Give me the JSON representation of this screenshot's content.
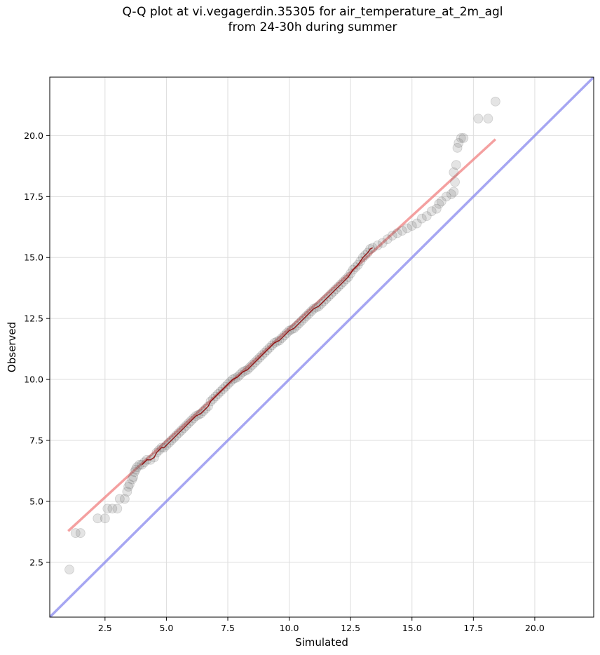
{
  "chart_data": {
    "type": "scatter",
    "title_line1": "Q-Q plot at vi.vegagerdin.35305 for air_temperature_at_2m_agl",
    "title_line2": "from 24-30h during summer",
    "xlabel": "Simulated",
    "ylabel": "Observed",
    "xlim": [
      0.25,
      22.4
    ],
    "ylim": [
      0.25,
      22.4
    ],
    "xticks": [
      2.5,
      5.0,
      7.5,
      10.0,
      12.5,
      15.0,
      17.5,
      20.0
    ],
    "yticks": [
      2.5,
      5.0,
      7.5,
      10.0,
      12.5,
      15.0,
      17.5,
      20.0
    ],
    "xtick_labels": [
      "2.5",
      "5.0",
      "7.5",
      "10.0",
      "12.5",
      "15.0",
      "17.5",
      "20.0"
    ],
    "ytick_labels": [
      "2.5",
      "5.0",
      "7.5",
      "10.0",
      "12.5",
      "15.0",
      "17.5",
      "20.0"
    ],
    "grid": true,
    "colors": {
      "points": "#555555",
      "fit_line": "#f08080",
      "identity_line": "#8888ee",
      "dense_trace": "#8b0000"
    },
    "identity_line": {
      "x": [
        0.25,
        22.4
      ],
      "y": [
        0.25,
        22.4
      ]
    },
    "fit_line": {
      "x": [
        1.0,
        18.4
      ],
      "y": [
        3.78,
        19.85
      ]
    },
    "points": [
      [
        1.05,
        2.2
      ],
      [
        1.3,
        3.7
      ],
      [
        1.5,
        3.7
      ],
      [
        2.2,
        4.3
      ],
      [
        2.5,
        4.3
      ],
      [
        2.6,
        4.7
      ],
      [
        2.8,
        4.7
      ],
      [
        3.0,
        4.7
      ],
      [
        3.1,
        5.1
      ],
      [
        3.3,
        5.1
      ],
      [
        3.4,
        5.4
      ],
      [
        3.45,
        5.6
      ],
      [
        3.5,
        5.7
      ],
      [
        3.6,
        5.9
      ],
      [
        3.65,
        6.0
      ],
      [
        3.7,
        6.2
      ],
      [
        3.75,
        6.3
      ],
      [
        3.8,
        6.4
      ],
      [
        3.9,
        6.5
      ],
      [
        4.0,
        6.5
      ],
      [
        4.1,
        6.6
      ],
      [
        4.2,
        6.7
      ],
      [
        4.35,
        6.7
      ],
      [
        4.5,
        6.8
      ],
      [
        4.6,
        7.0
      ],
      [
        4.7,
        7.1
      ],
      [
        4.8,
        7.2
      ],
      [
        4.9,
        7.2
      ],
      [
        5.0,
        7.3
      ],
      [
        5.1,
        7.4
      ],
      [
        5.2,
        7.5
      ],
      [
        5.3,
        7.6
      ],
      [
        5.4,
        7.7
      ],
      [
        5.5,
        7.8
      ],
      [
        5.6,
        7.9
      ],
      [
        5.7,
        8.0
      ],
      [
        5.8,
        8.1
      ],
      [
        5.9,
        8.2
      ],
      [
        6.0,
        8.3
      ],
      [
        6.1,
        8.4
      ],
      [
        6.2,
        8.5
      ],
      [
        6.3,
        8.55
      ],
      [
        6.4,
        8.6
      ],
      [
        6.5,
        8.7
      ],
      [
        6.6,
        8.8
      ],
      [
        6.7,
        8.9
      ],
      [
        6.8,
        9.1
      ],
      [
        6.9,
        9.2
      ],
      [
        7.0,
        9.3
      ],
      [
        7.1,
        9.4
      ],
      [
        7.2,
        9.5
      ],
      [
        7.3,
        9.6
      ],
      [
        7.4,
        9.7
      ],
      [
        7.5,
        9.8
      ],
      [
        7.6,
        9.9
      ],
      [
        7.7,
        10.0
      ],
      [
        7.8,
        10.05
      ],
      [
        7.9,
        10.1
      ],
      [
        8.0,
        10.2
      ],
      [
        8.1,
        10.3
      ],
      [
        8.2,
        10.35
      ],
      [
        8.3,
        10.4
      ],
      [
        8.4,
        10.5
      ],
      [
        8.5,
        10.6
      ],
      [
        8.6,
        10.7
      ],
      [
        8.7,
        10.8
      ],
      [
        8.8,
        10.9
      ],
      [
        8.9,
        11.0
      ],
      [
        9.0,
        11.1
      ],
      [
        9.1,
        11.2
      ],
      [
        9.2,
        11.3
      ],
      [
        9.3,
        11.4
      ],
      [
        9.4,
        11.5
      ],
      [
        9.5,
        11.55
      ],
      [
        9.6,
        11.6
      ],
      [
        9.7,
        11.7
      ],
      [
        9.8,
        11.8
      ],
      [
        9.9,
        11.9
      ],
      [
        10.0,
        12.0
      ],
      [
        10.1,
        12.05
      ],
      [
        10.2,
        12.1
      ],
      [
        10.3,
        12.2
      ],
      [
        10.4,
        12.3
      ],
      [
        10.5,
        12.4
      ],
      [
        10.6,
        12.5
      ],
      [
        10.7,
        12.6
      ],
      [
        10.8,
        12.7
      ],
      [
        10.9,
        12.8
      ],
      [
        11.0,
        12.9
      ],
      [
        11.1,
        12.95
      ],
      [
        11.2,
        13.0
      ],
      [
        11.3,
        13.1
      ],
      [
        11.4,
        13.2
      ],
      [
        11.5,
        13.3
      ],
      [
        11.6,
        13.4
      ],
      [
        11.7,
        13.5
      ],
      [
        11.8,
        13.6
      ],
      [
        11.9,
        13.7
      ],
      [
        12.0,
        13.8
      ],
      [
        12.1,
        13.9
      ],
      [
        12.2,
        14.0
      ],
      [
        12.3,
        14.1
      ],
      [
        12.4,
        14.2
      ],
      [
        12.5,
        14.35
      ],
      [
        12.6,
        14.5
      ],
      [
        12.7,
        14.6
      ],
      [
        12.8,
        14.7
      ],
      [
        12.9,
        14.85
      ],
      [
        13.0,
        15.0
      ],
      [
        13.1,
        15.1
      ],
      [
        13.2,
        15.2
      ],
      [
        13.3,
        15.35
      ],
      [
        13.4,
        15.4
      ],
      [
        13.6,
        15.5
      ],
      [
        13.8,
        15.6
      ],
      [
        14.0,
        15.75
      ],
      [
        14.2,
        15.9
      ],
      [
        14.4,
        16.0
      ],
      [
        14.6,
        16.1
      ],
      [
        14.8,
        16.2
      ],
      [
        15.0,
        16.3
      ],
      [
        15.2,
        16.4
      ],
      [
        15.4,
        16.6
      ],
      [
        15.6,
        16.7
      ],
      [
        15.8,
        16.9
      ],
      [
        16.0,
        17.0
      ],
      [
        16.1,
        17.2
      ],
      [
        16.2,
        17.3
      ],
      [
        16.4,
        17.5
      ],
      [
        16.6,
        17.6
      ],
      [
        16.7,
        17.7
      ],
      [
        16.75,
        18.1
      ],
      [
        16.7,
        18.5
      ],
      [
        16.8,
        18.8
      ],
      [
        16.85,
        19.5
      ],
      [
        16.9,
        19.7
      ],
      [
        17.0,
        19.9
      ],
      [
        17.1,
        19.9
      ],
      [
        17.7,
        20.7
      ],
      [
        18.1,
        20.7
      ],
      [
        18.4,
        21.4
      ]
    ]
  }
}
